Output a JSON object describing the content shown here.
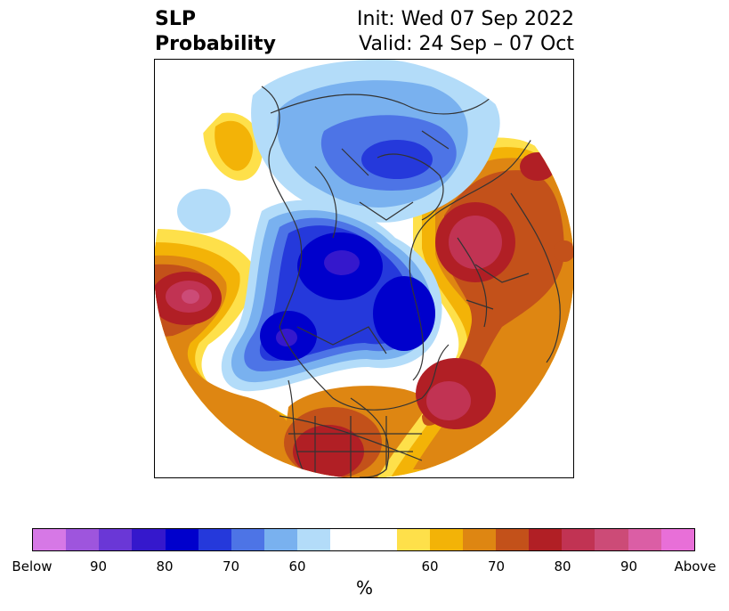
{
  "title": {
    "left_line1": "SLP",
    "left_line2": "Probability",
    "right_line1": "Init: Wed 07 Sep 2022",
    "right_line2": "Valid: 24 Sep – 07 Oct"
  },
  "colorbar": {
    "colors": [
      "#d678e6",
      "#9e55dd",
      "#6a37d6",
      "#3518cc",
      "#0000cc",
      "#2539db",
      "#4d74e6",
      "#79b1ef",
      "#b3dcf9",
      "#ffffff",
      "#ffffff",
      "#fee04a",
      "#f3b307",
      "#de8612",
      "#c3511a",
      "#b11f25",
      "#c13353",
      "#cc4b77",
      "#db5ea5",
      "#e86fd8"
    ],
    "tick_labels": [
      "Below",
      "90",
      "80",
      "70",
      "60",
      "60",
      "70",
      "80",
      "90",
      "Above"
    ],
    "unit_label": "%"
  },
  "map": {
    "background_color": "#ffffff",
    "coastline_color": "#333333"
  }
}
